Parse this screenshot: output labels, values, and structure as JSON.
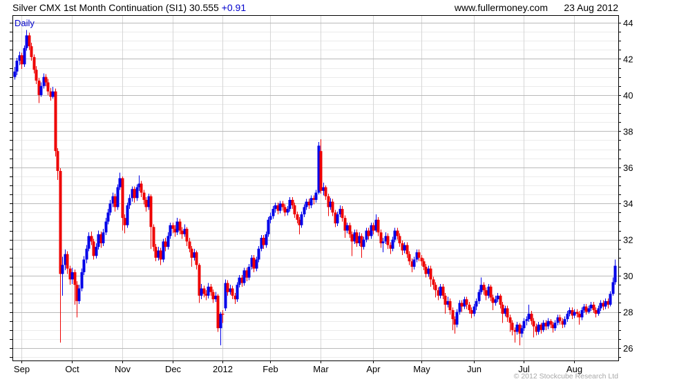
{
  "header": {
    "title": "Silver CMX 1st Month Continuation (SI1) 30.555",
    "change": "+0.91",
    "website": "www.fullermoney.com",
    "date": "23 Aug 2012"
  },
  "chart": {
    "frequency_label": "Daily",
    "copyright": "© 2012 Stockcube Research Ltd"
  },
  "colors": {
    "up": "#0000e8",
    "down": "#ee0000",
    "text_blue": "#0000cc",
    "grid_minor": "#ebebeb",
    "grid_major": "#b9b9b9",
    "grid_month": "#d6d6d6",
    "frame": "#000000",
    "copyright_gray": "#a8a8a8"
  },
  "chart_data": {
    "type": "candlestick",
    "title": "Silver CMX 1st Month Continuation (SI1)",
    "frequency": "Daily",
    "last_price": 30.555,
    "change": 0.91,
    "date": "23 Aug 2012",
    "ylabel": "",
    "xlabel": "",
    "ylim": [
      25.3,
      44.35
    ],
    "y_tick_labels": [
      26,
      28,
      30,
      32,
      34,
      36,
      38,
      40,
      42,
      44
    ],
    "y_minor_step": 0.5,
    "y_major_step": 2,
    "legend_position": "none",
    "grid": "on",
    "x_labels": [
      "Sep",
      "Oct",
      "Nov",
      "Dec",
      "2012",
      "Feb",
      "Mar",
      "Apr",
      "May",
      "Jun",
      "Jul",
      "Aug"
    ],
    "x_label_indices": [
      3,
      24,
      45,
      66,
      87,
      107,
      128,
      150,
      170,
      192,
      213,
      234
    ],
    "ohlc_format": [
      "open",
      "high",
      "low",
      "close"
    ],
    "candles": [
      [
        41.0,
        41.55,
        40.85,
        41.3
      ],
      [
        41.3,
        42.05,
        41.1,
        41.9
      ],
      [
        41.9,
        42.4,
        41.65,
        42.2
      ],
      [
        42.2,
        42.35,
        41.45,
        41.7
      ],
      [
        41.7,
        42.75,
        41.55,
        42.6
      ],
      [
        42.6,
        43.6,
        42.45,
        43.3
      ],
      [
        43.3,
        43.45,
        42.5,
        42.7
      ],
      [
        42.7,
        42.9,
        41.9,
        42.1
      ],
      [
        42.1,
        42.25,
        41.2,
        41.4
      ],
      [
        41.4,
        41.6,
        40.6,
        40.8
      ],
      [
        40.8,
        40.95,
        39.55,
        40.0
      ],
      [
        40.0,
        40.7,
        39.9,
        40.5
      ],
      [
        40.5,
        41.2,
        40.35,
        41.0
      ],
      [
        41.0,
        41.15,
        40.5,
        40.7
      ],
      [
        40.7,
        40.9,
        40.0,
        40.2
      ],
      [
        40.2,
        40.4,
        39.7,
        39.9
      ],
      [
        39.9,
        40.45,
        39.8,
        40.2
      ],
      [
        40.2,
        40.35,
        36.6,
        36.9
      ],
      [
        36.9,
        37.05,
        35.3,
        35.8
      ],
      [
        35.8,
        35.95,
        26.3,
        30.1
      ],
      [
        30.1,
        31.05,
        28.9,
        30.6
      ],
      [
        30.6,
        31.45,
        30.3,
        31.2
      ],
      [
        31.2,
        31.35,
        30.1,
        30.4
      ],
      [
        30.4,
        30.55,
        29.5,
        29.8
      ],
      [
        29.8,
        30.45,
        29.55,
        30.2
      ],
      [
        30.2,
        30.35,
        28.4,
        29.5
      ],
      [
        29.5,
        29.7,
        27.7,
        28.6
      ],
      [
        28.6,
        29.5,
        28.45,
        29.3
      ],
      [
        29.3,
        30.4,
        29.15,
        30.2
      ],
      [
        30.2,
        31.1,
        30.05,
        30.9
      ],
      [
        30.9,
        31.7,
        30.7,
        31.5
      ],
      [
        31.5,
        32.4,
        31.35,
        32.2
      ],
      [
        32.2,
        32.45,
        31.7,
        31.9
      ],
      [
        31.9,
        32.05,
        30.9,
        31.1
      ],
      [
        31.1,
        31.8,
        30.95,
        31.6
      ],
      [
        31.6,
        32.5,
        31.45,
        32.3
      ],
      [
        32.3,
        32.45,
        31.55,
        31.8
      ],
      [
        31.8,
        32.6,
        31.65,
        32.4
      ],
      [
        32.4,
        33.2,
        32.25,
        33.0
      ],
      [
        33.0,
        33.7,
        32.85,
        33.5
      ],
      [
        33.5,
        34.2,
        33.35,
        34.0
      ],
      [
        34.0,
        34.6,
        33.8,
        34.4
      ],
      [
        34.4,
        34.55,
        33.55,
        33.8
      ],
      [
        33.8,
        35.05,
        33.65,
        34.9
      ],
      [
        34.9,
        35.7,
        34.75,
        35.4
      ],
      [
        35.4,
        35.5,
        32.5,
        33.2
      ],
      [
        33.2,
        33.4,
        32.35,
        32.8
      ],
      [
        32.8,
        34.05,
        32.65,
        33.9
      ],
      [
        33.9,
        34.5,
        33.7,
        34.3
      ],
      [
        34.3,
        34.95,
        34.1,
        34.8
      ],
      [
        34.8,
        34.95,
        34.05,
        34.3
      ],
      [
        34.3,
        35.05,
        34.15,
        34.9
      ],
      [
        34.9,
        35.55,
        34.7,
        35.1
      ],
      [
        35.1,
        35.25,
        34.35,
        34.6
      ],
      [
        34.6,
        34.75,
        33.95,
        34.2
      ],
      [
        34.2,
        34.35,
        33.55,
        33.8
      ],
      [
        33.8,
        34.55,
        33.65,
        34.4
      ],
      [
        34.4,
        34.5,
        31.5,
        32.7
      ],
      [
        32.7,
        32.85,
        31.35,
        31.6
      ],
      [
        31.6,
        31.75,
        30.8,
        31.0
      ],
      [
        31.0,
        31.6,
        30.85,
        31.4
      ],
      [
        31.4,
        31.55,
        30.6,
        30.9
      ],
      [
        30.9,
        32.05,
        30.75,
        31.9
      ],
      [
        31.9,
        32.1,
        31.35,
        31.6
      ],
      [
        31.6,
        32.4,
        31.45,
        32.2
      ],
      [
        32.2,
        32.95,
        32.05,
        32.8
      ],
      [
        32.8,
        32.95,
        32.35,
        32.6
      ],
      [
        32.6,
        32.8,
        32.15,
        32.4
      ],
      [
        32.4,
        33.2,
        32.25,
        33.0
      ],
      [
        33.0,
        33.15,
        32.3,
        32.5
      ],
      [
        32.5,
        32.7,
        32.05,
        32.3
      ],
      [
        32.3,
        32.85,
        32.15,
        32.6
      ],
      [
        32.6,
        32.7,
        31.65,
        31.9
      ],
      [
        31.9,
        32.1,
        31.3,
        31.5
      ],
      [
        31.5,
        31.65,
        30.5,
        31.0
      ],
      [
        31.0,
        31.5,
        30.85,
        31.3
      ],
      [
        31.3,
        31.4,
        30.35,
        30.6
      ],
      [
        30.6,
        30.7,
        28.5,
        28.9
      ],
      [
        28.9,
        29.55,
        28.7,
        29.3
      ],
      [
        29.3,
        29.45,
        28.8,
        29.0
      ],
      [
        29.0,
        29.2,
        28.65,
        28.9
      ],
      [
        28.9,
        29.6,
        28.75,
        29.4
      ],
      [
        29.4,
        29.55,
        28.9,
        29.1
      ],
      [
        29.1,
        29.25,
        28.5,
        28.7
      ],
      [
        28.7,
        29.1,
        28.55,
        28.9
      ],
      [
        28.9,
        29.0,
        26.9,
        27.1
      ],
      [
        27.1,
        28.0,
        26.15,
        27.9
      ],
      [
        27.9,
        28.1,
        27.4,
        27.85
      ],
      [
        28.2,
        29.8,
        28.05,
        29.6
      ],
      [
        29.6,
        29.75,
        28.9,
        29.1
      ],
      [
        29.1,
        29.5,
        28.95,
        29.3
      ],
      [
        29.3,
        29.45,
        28.7,
        28.9
      ],
      [
        28.9,
        29.05,
        28.45,
        28.7
      ],
      [
        28.7,
        29.65,
        28.55,
        29.5
      ],
      [
        29.5,
        30.05,
        29.35,
        29.9
      ],
      [
        29.9,
        30.05,
        29.4,
        29.6
      ],
      [
        29.6,
        30.45,
        29.45,
        30.3
      ],
      [
        30.3,
        30.45,
        29.7,
        29.9
      ],
      [
        29.9,
        30.65,
        29.75,
        30.5
      ],
      [
        30.5,
        31.15,
        30.35,
        31.0
      ],
      [
        31.0,
        31.15,
        30.2,
        30.4
      ],
      [
        30.4,
        31.05,
        30.25,
        30.9
      ],
      [
        30.9,
        31.65,
        30.75,
        31.5
      ],
      [
        31.5,
        32.25,
        31.35,
        32.1
      ],
      [
        32.1,
        32.25,
        31.5,
        31.7
      ],
      [
        31.7,
        32.45,
        31.55,
        32.3
      ],
      [
        32.3,
        33.25,
        32.15,
        33.1
      ],
      [
        33.1,
        33.5,
        32.9,
        33.3
      ],
      [
        33.3,
        33.85,
        33.15,
        33.7
      ],
      [
        33.7,
        34.05,
        33.5,
        33.9
      ],
      [
        33.9,
        34.05,
        33.4,
        33.6
      ],
      [
        33.6,
        34.15,
        33.45,
        34.0
      ],
      [
        34.0,
        34.15,
        33.6,
        33.8
      ],
      [
        33.8,
        33.95,
        33.3,
        33.5
      ],
      [
        33.5,
        33.85,
        33.35,
        33.7
      ],
      [
        33.7,
        34.35,
        33.55,
        34.2
      ],
      [
        34.2,
        34.35,
        33.7,
        33.9
      ],
      [
        33.9,
        34.05,
        33.2,
        33.4
      ],
      [
        33.4,
        33.55,
        32.9,
        33.1
      ],
      [
        33.1,
        33.25,
        32.3,
        32.8
      ],
      [
        32.8,
        33.55,
        32.65,
        33.4
      ],
      [
        33.4,
        33.95,
        33.25,
        33.8
      ],
      [
        33.8,
        34.25,
        33.65,
        34.1
      ],
      [
        34.1,
        34.25,
        33.7,
        33.9
      ],
      [
        33.9,
        34.45,
        33.75,
        34.3
      ],
      [
        34.3,
        34.45,
        33.95,
        34.2
      ],
      [
        34.2,
        34.75,
        34.05,
        34.6
      ],
      [
        34.6,
        37.4,
        34.5,
        37.2
      ],
      [
        36.9,
        37.55,
        34.55,
        34.7
      ],
      [
        34.7,
        35.15,
        34.45,
        34.9
      ],
      [
        34.9,
        35.0,
        34.2,
        34.4
      ],
      [
        34.4,
        34.55,
        33.3,
        33.8
      ],
      [
        33.8,
        34.3,
        33.65,
        34.1
      ],
      [
        34.1,
        34.25,
        33.3,
        33.5
      ],
      [
        33.5,
        33.65,
        32.7,
        32.9
      ],
      [
        32.9,
        33.55,
        32.75,
        33.4
      ],
      [
        33.4,
        33.9,
        33.25,
        33.7
      ],
      [
        33.7,
        33.85,
        33.0,
        33.2
      ],
      [
        33.2,
        33.35,
        32.1,
        32.5
      ],
      [
        32.5,
        32.95,
        32.35,
        32.8
      ],
      [
        32.8,
        32.95,
        32.1,
        32.3
      ],
      [
        32.3,
        32.45,
        31.1,
        31.9
      ],
      [
        31.9,
        32.55,
        31.75,
        32.4
      ],
      [
        32.4,
        32.55,
        31.6,
        31.8
      ],
      [
        31.8,
        32.4,
        31.65,
        32.2
      ],
      [
        32.2,
        32.35,
        31.0,
        31.6
      ],
      [
        31.6,
        32.15,
        31.45,
        32.0
      ],
      [
        32.0,
        32.65,
        31.85,
        32.5
      ],
      [
        32.5,
        32.65,
        32.0,
        32.2
      ],
      [
        32.2,
        32.95,
        32.05,
        32.8
      ],
      [
        32.8,
        32.95,
        32.3,
        32.5
      ],
      [
        32.5,
        33.4,
        32.4,
        33.1
      ],
      [
        33.1,
        33.25,
        32.2,
        32.4
      ],
      [
        32.4,
        32.55,
        31.55,
        31.8
      ],
      [
        31.8,
        32.1,
        31.3,
        31.9
      ],
      [
        31.9,
        32.4,
        31.75,
        32.2
      ],
      [
        32.2,
        32.35,
        31.5,
        31.7
      ],
      [
        31.7,
        31.85,
        31.2,
        31.5
      ],
      [
        31.5,
        32.15,
        31.35,
        32.0
      ],
      [
        32.0,
        32.65,
        31.85,
        32.5
      ],
      [
        32.5,
        32.65,
        32.0,
        32.2
      ],
      [
        32.2,
        32.35,
        31.6,
        31.8
      ],
      [
        31.8,
        31.95,
        31.15,
        31.4
      ],
      [
        31.4,
        31.85,
        31.25,
        31.7
      ],
      [
        31.7,
        31.85,
        31.0,
        31.2
      ],
      [
        31.2,
        31.35,
        30.6,
        30.8
      ],
      [
        30.8,
        30.95,
        30.2,
        30.5
      ],
      [
        30.5,
        31.05,
        30.35,
        30.9
      ],
      [
        30.9,
        31.45,
        30.75,
        31.3
      ],
      [
        31.3,
        31.45,
        30.8,
        31.0
      ],
      [
        31.0,
        31.15,
        30.55,
        30.8
      ],
      [
        30.8,
        30.95,
        30.3,
        30.5
      ],
      [
        30.5,
        30.65,
        29.9,
        30.1
      ],
      [
        30.1,
        30.55,
        29.95,
        30.4
      ],
      [
        30.4,
        30.55,
        29.4,
        29.8
      ],
      [
        29.8,
        29.95,
        29.25,
        29.5
      ],
      [
        29.5,
        29.65,
        28.8,
        29.2
      ],
      [
        29.2,
        29.35,
        28.65,
        28.9
      ],
      [
        28.9,
        29.55,
        28.75,
        29.4
      ],
      [
        29.4,
        29.55,
        28.7,
        28.9
      ],
      [
        28.9,
        29.05,
        27.9,
        28.4
      ],
      [
        28.4,
        28.85,
        28.25,
        28.6
      ],
      [
        28.6,
        28.75,
        27.85,
        28.1
      ],
      [
        28.1,
        28.25,
        27.0,
        27.6
      ],
      [
        27.6,
        27.75,
        26.8,
        27.3
      ],
      [
        27.3,
        28.15,
        27.15,
        28.0
      ],
      [
        28.0,
        28.65,
        27.85,
        28.5
      ],
      [
        28.5,
        28.65,
        28.0,
        28.3
      ],
      [
        28.3,
        28.85,
        28.15,
        28.7
      ],
      [
        28.7,
        28.85,
        28.15,
        28.4
      ],
      [
        28.4,
        28.55,
        27.9,
        28.1
      ],
      [
        28.1,
        28.25,
        27.65,
        27.9
      ],
      [
        27.9,
        28.45,
        27.75,
        28.3
      ],
      [
        28.3,
        28.75,
        28.1,
        28.6
      ],
      [
        28.6,
        29.25,
        28.45,
        29.1
      ],
      [
        29.1,
        29.9,
        28.95,
        29.5
      ],
      [
        29.5,
        29.65,
        28.95,
        29.2
      ],
      [
        29.2,
        29.35,
        28.65,
        28.9
      ],
      [
        28.9,
        29.55,
        28.75,
        29.4
      ],
      [
        29.4,
        29.5,
        28.6,
        28.8
      ],
      [
        28.8,
        28.95,
        28.1,
        28.5
      ],
      [
        28.5,
        28.9,
        28.35,
        28.7
      ],
      [
        28.7,
        29.05,
        28.55,
        28.9
      ],
      [
        28.9,
        29.0,
        28.2,
        28.4
      ],
      [
        28.4,
        28.55,
        27.4,
        27.9
      ],
      [
        27.9,
        28.35,
        27.75,
        28.2
      ],
      [
        28.2,
        28.35,
        27.45,
        27.7
      ],
      [
        27.7,
        27.85,
        26.9,
        27.4
      ],
      [
        27.4,
        27.55,
        26.7,
        27.0
      ],
      [
        27.0,
        27.15,
        26.3,
        26.9
      ],
      [
        26.9,
        27.45,
        26.75,
        27.3
      ],
      [
        27.3,
        27.4,
        26.15,
        26.8
      ],
      [
        26.8,
        27.25,
        26.6,
        27.1
      ],
      [
        27.1,
        27.65,
        26.95,
        27.5
      ],
      [
        27.5,
        27.75,
        27.25,
        27.6
      ],
      [
        27.6,
        28.4,
        27.45,
        27.9
      ],
      [
        27.9,
        28.05,
        27.3,
        27.5
      ],
      [
        27.5,
        27.65,
        26.6,
        27.2
      ],
      [
        27.2,
        27.35,
        26.7,
        26.9
      ],
      [
        26.9,
        27.45,
        26.75,
        27.3
      ],
      [
        27.3,
        27.4,
        26.8,
        27.0
      ],
      [
        27.0,
        27.55,
        26.9,
        27.4
      ],
      [
        27.4,
        27.55,
        27.0,
        27.2
      ],
      [
        27.2,
        27.65,
        27.05,
        27.5
      ],
      [
        27.5,
        27.6,
        27.1,
        27.3
      ],
      [
        27.3,
        27.45,
        26.85,
        27.1
      ],
      [
        27.1,
        27.55,
        26.95,
        27.4
      ],
      [
        27.4,
        27.85,
        27.25,
        27.7
      ],
      [
        27.7,
        27.85,
        27.3,
        27.5
      ],
      [
        27.5,
        27.65,
        27.1,
        27.3
      ],
      [
        27.3,
        27.75,
        27.15,
        27.6
      ],
      [
        27.6,
        28.05,
        27.45,
        27.9
      ],
      [
        27.9,
        28.25,
        27.75,
        28.1
      ],
      [
        28.1,
        28.25,
        27.6,
        27.8
      ],
      [
        27.8,
        28.15,
        27.65,
        28.0
      ],
      [
        28.0,
        28.15,
        27.7,
        27.9
      ],
      [
        27.9,
        28.05,
        27.3,
        27.7
      ],
      [
        27.7,
        28.25,
        27.55,
        28.1
      ],
      [
        28.1,
        28.45,
        27.95,
        28.3
      ],
      [
        28.3,
        28.45,
        27.85,
        28.0
      ],
      [
        28.0,
        28.35,
        27.9,
        28.2
      ],
      [
        28.2,
        28.55,
        28.05,
        28.4
      ],
      [
        28.4,
        28.55,
        27.95,
        28.1
      ],
      [
        28.1,
        28.25,
        27.7,
        27.9
      ],
      [
        27.9,
        28.35,
        27.8,
        28.2
      ],
      [
        28.2,
        28.65,
        28.05,
        28.5
      ],
      [
        28.5,
        28.65,
        28.1,
        28.3
      ],
      [
        28.3,
        28.75,
        28.15,
        28.6
      ],
      [
        28.6,
        28.75,
        28.2,
        28.4
      ],
      [
        28.4,
        29.15,
        28.3,
        29.0
      ],
      [
        29.0,
        29.9,
        28.9,
        29.645
      ],
      [
        29.645,
        30.9,
        29.5,
        30.555
      ]
    ]
  }
}
